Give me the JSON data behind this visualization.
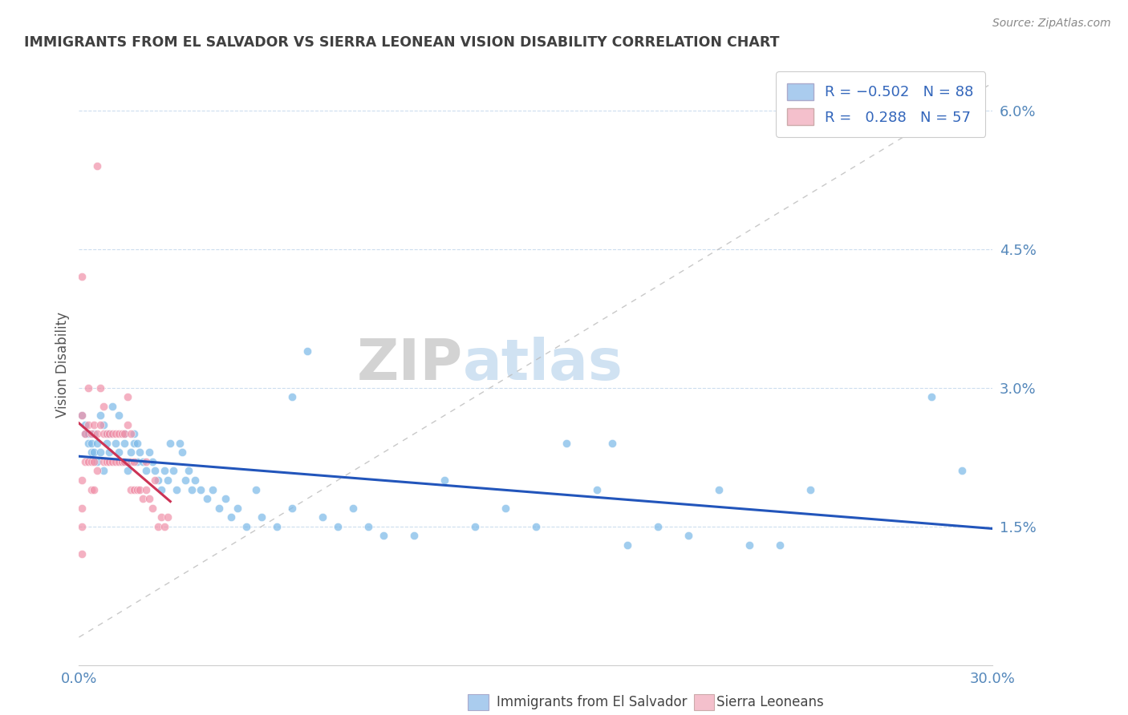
{
  "title": "IMMIGRANTS FROM EL SALVADOR VS SIERRA LEONEAN VISION DISABILITY CORRELATION CHART",
  "source": "Source: ZipAtlas.com",
  "ylabel": "Vision Disability",
  "yticks": [
    "1.5%",
    "3.0%",
    "4.5%",
    "6.0%"
  ],
  "ytick_vals": [
    0.015,
    0.03,
    0.045,
    0.06
  ],
  "xlim": [
    0.0,
    0.3
  ],
  "ylim": [
    0.0,
    0.065
  ],
  "blue_scatter_color": "#7ab8e8",
  "pink_scatter_color": "#f090a8",
  "blue_line_color": "#2255bb",
  "pink_line_color": "#cc3355",
  "watermark_text": "ZIPatlas",
  "watermark_color": "#c8ddf0",
  "background_color": "#ffffff",
  "grid_color": "#ccddee",
  "title_color": "#404040",
  "axis_label_color": "#5588bb",
  "legend_blue_color": "#aaccee",
  "legend_pink_color": "#f4c0cc",
  "blue_points": [
    [
      0.001,
      0.027
    ],
    [
      0.002,
      0.026
    ],
    [
      0.002,
      0.025
    ],
    [
      0.003,
      0.025
    ],
    [
      0.003,
      0.024
    ],
    [
      0.004,
      0.024
    ],
    [
      0.004,
      0.023
    ],
    [
      0.005,
      0.023
    ],
    [
      0.005,
      0.025
    ],
    [
      0.006,
      0.022
    ],
    [
      0.006,
      0.024
    ],
    [
      0.007,
      0.027
    ],
    [
      0.007,
      0.023
    ],
    [
      0.008,
      0.021
    ],
    [
      0.008,
      0.026
    ],
    [
      0.009,
      0.025
    ],
    [
      0.009,
      0.024
    ],
    [
      0.01,
      0.023
    ],
    [
      0.01,
      0.025
    ],
    [
      0.011,
      0.028
    ],
    [
      0.012,
      0.024
    ],
    [
      0.013,
      0.027
    ],
    [
      0.013,
      0.023
    ],
    [
      0.014,
      0.022
    ],
    [
      0.015,
      0.024
    ],
    [
      0.015,
      0.025
    ],
    [
      0.016,
      0.021
    ],
    [
      0.016,
      0.022
    ],
    [
      0.017,
      0.023
    ],
    [
      0.018,
      0.024
    ],
    [
      0.018,
      0.025
    ],
    [
      0.019,
      0.022
    ],
    [
      0.019,
      0.024
    ],
    [
      0.02,
      0.023
    ],
    [
      0.021,
      0.022
    ],
    [
      0.022,
      0.021
    ],
    [
      0.023,
      0.023
    ],
    [
      0.024,
      0.022
    ],
    [
      0.025,
      0.021
    ],
    [
      0.026,
      0.02
    ],
    [
      0.027,
      0.019
    ],
    [
      0.028,
      0.021
    ],
    [
      0.029,
      0.02
    ],
    [
      0.03,
      0.024
    ],
    [
      0.031,
      0.021
    ],
    [
      0.032,
      0.019
    ],
    [
      0.033,
      0.024
    ],
    [
      0.034,
      0.023
    ],
    [
      0.035,
      0.02
    ],
    [
      0.036,
      0.021
    ],
    [
      0.037,
      0.019
    ],
    [
      0.038,
      0.02
    ],
    [
      0.04,
      0.019
    ],
    [
      0.042,
      0.018
    ],
    [
      0.044,
      0.019
    ],
    [
      0.046,
      0.017
    ],
    [
      0.048,
      0.018
    ],
    [
      0.05,
      0.016
    ],
    [
      0.052,
      0.017
    ],
    [
      0.055,
      0.015
    ],
    [
      0.058,
      0.019
    ],
    [
      0.06,
      0.016
    ],
    [
      0.065,
      0.015
    ],
    [
      0.07,
      0.029
    ],
    [
      0.07,
      0.017
    ],
    [
      0.075,
      0.034
    ],
    [
      0.08,
      0.016
    ],
    [
      0.085,
      0.015
    ],
    [
      0.09,
      0.017
    ],
    [
      0.095,
      0.015
    ],
    [
      0.1,
      0.014
    ],
    [
      0.11,
      0.014
    ],
    [
      0.12,
      0.02
    ],
    [
      0.13,
      0.015
    ],
    [
      0.14,
      0.017
    ],
    [
      0.15,
      0.015
    ],
    [
      0.16,
      0.024
    ],
    [
      0.17,
      0.019
    ],
    [
      0.18,
      0.013
    ],
    [
      0.19,
      0.015
    ],
    [
      0.2,
      0.014
    ],
    [
      0.21,
      0.019
    ],
    [
      0.22,
      0.013
    ],
    [
      0.23,
      0.013
    ],
    [
      0.24,
      0.019
    ],
    [
      0.28,
      0.029
    ],
    [
      0.29,
      0.021
    ],
    [
      0.175,
      0.024
    ]
  ],
  "pink_points": [
    [
      0.001,
      0.027
    ],
    [
      0.002,
      0.025
    ],
    [
      0.002,
      0.022
    ],
    [
      0.003,
      0.03
    ],
    [
      0.003,
      0.026
    ],
    [
      0.003,
      0.022
    ],
    [
      0.004,
      0.025
    ],
    [
      0.004,
      0.022
    ],
    [
      0.004,
      0.019
    ],
    [
      0.005,
      0.026
    ],
    [
      0.005,
      0.022
    ],
    [
      0.005,
      0.019
    ],
    [
      0.006,
      0.054
    ],
    [
      0.006,
      0.025
    ],
    [
      0.006,
      0.021
    ],
    [
      0.007,
      0.03
    ],
    [
      0.007,
      0.026
    ],
    [
      0.008,
      0.028
    ],
    [
      0.008,
      0.025
    ],
    [
      0.008,
      0.022
    ],
    [
      0.009,
      0.025
    ],
    [
      0.009,
      0.022
    ],
    [
      0.01,
      0.025
    ],
    [
      0.01,
      0.022
    ],
    [
      0.011,
      0.025
    ],
    [
      0.011,
      0.022
    ],
    [
      0.012,
      0.025
    ],
    [
      0.012,
      0.022
    ],
    [
      0.013,
      0.025
    ],
    [
      0.013,
      0.022
    ],
    [
      0.014,
      0.025
    ],
    [
      0.014,
      0.022
    ],
    [
      0.015,
      0.025
    ],
    [
      0.015,
      0.022
    ],
    [
      0.016,
      0.029
    ],
    [
      0.016,
      0.026
    ],
    [
      0.017,
      0.025
    ],
    [
      0.017,
      0.022
    ],
    [
      0.017,
      0.019
    ],
    [
      0.018,
      0.022
    ],
    [
      0.018,
      0.019
    ],
    [
      0.019,
      0.019
    ],
    [
      0.02,
      0.019
    ],
    [
      0.021,
      0.018
    ],
    [
      0.022,
      0.022
    ],
    [
      0.022,
      0.019
    ],
    [
      0.023,
      0.018
    ],
    [
      0.024,
      0.017
    ],
    [
      0.025,
      0.02
    ],
    [
      0.026,
      0.015
    ],
    [
      0.027,
      0.016
    ],
    [
      0.028,
      0.015
    ],
    [
      0.029,
      0.016
    ],
    [
      0.001,
      0.042
    ],
    [
      0.001,
      0.02
    ],
    [
      0.001,
      0.017
    ],
    [
      0.001,
      0.015
    ],
    [
      0.001,
      0.012
    ]
  ]
}
